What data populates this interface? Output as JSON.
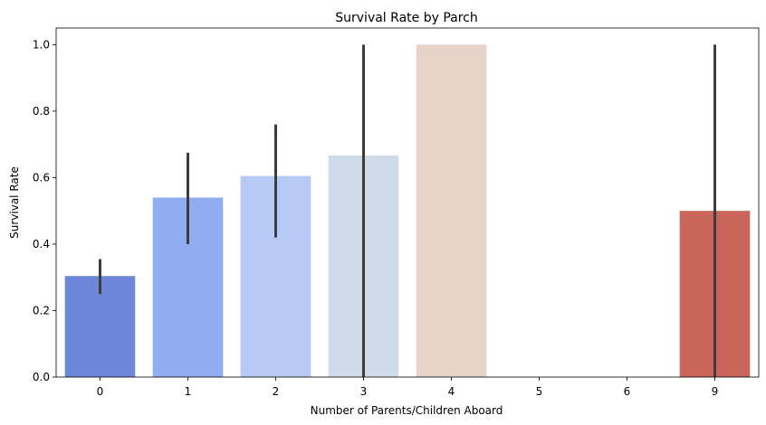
{
  "chart_data": {
    "type": "bar",
    "title": "Survival Rate by Parch",
    "xlabel": "Number of Parents/Children Aboard",
    "ylabel": "Survival Rate",
    "categories": [
      "0",
      "1",
      "2",
      "3",
      "4",
      "5",
      "6",
      "9"
    ],
    "values": [
      0.304,
      0.54,
      0.605,
      0.667,
      1.0,
      0.0,
      0.0,
      0.5
    ],
    "error_bars": [
      {
        "low": 0.25,
        "high": 0.355
      },
      {
        "low": 0.4,
        "high": 0.675
      },
      {
        "low": 0.42,
        "high": 0.76
      },
      {
        "low": 0.0,
        "high": 1.0
      },
      null,
      null,
      null,
      {
        "low": 0.0,
        "high": 1.0
      }
    ],
    "colors": [
      "#6d86d9",
      "#8fadf0",
      "#b6caf5",
      "#d0dbea",
      "#e6d4cb",
      "#e8b89c",
      "#e6907a",
      "#c9655a"
    ],
    "error_color": "#3d3d3d",
    "ylim": [
      0,
      1.05
    ],
    "yticks": [
      0.0,
      0.2,
      0.4,
      0.6,
      0.8,
      1.0
    ],
    "ytick_labels": [
      "0.0",
      "0.2",
      "0.4",
      "0.6",
      "0.8",
      "1.0"
    ],
    "grid": false,
    "legend": "none"
  }
}
